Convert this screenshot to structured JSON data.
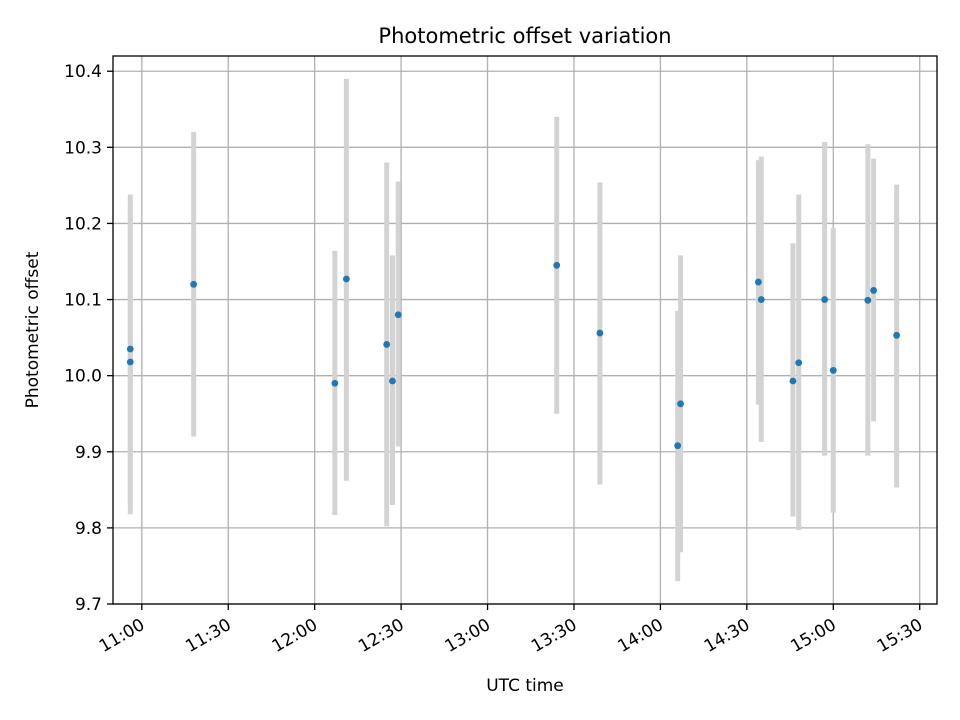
{
  "chart_data": {
    "type": "scatter",
    "title": "Photometric offset variation",
    "xlabel": "UTC time",
    "ylabel": "Photometric offset",
    "x_unit": "HH:MM UTC",
    "xlim": [
      "10:50",
      "15:36"
    ],
    "ylim": [
      9.7,
      10.42
    ],
    "x_ticks": [
      "11:00",
      "11:30",
      "12:00",
      "12:30",
      "13:00",
      "13:30",
      "14:00",
      "14:30",
      "15:00",
      "15:30"
    ],
    "y_ticks": [
      "9.7",
      "9.8",
      "9.9",
      "10.0",
      "10.1",
      "10.2",
      "10.3",
      "10.4"
    ],
    "grid": true,
    "x_tick_rotation": "30 degrees",
    "marker_color": "#1f77b4",
    "errorbar_color": "#d3d3d3",
    "points": [
      {
        "x": "10:56",
        "y": 10.018,
        "err_low": 9.818,
        "err_high": 10.222
      },
      {
        "x": "10:56",
        "y": 10.035,
        "err_low": 9.833,
        "err_high": 10.238
      },
      {
        "x": "11:18",
        "y": 10.12,
        "err_low": 9.92,
        "err_high": 10.32
      },
      {
        "x": "12:07",
        "y": 9.99,
        "err_low": 9.817,
        "err_high": 10.164
      },
      {
        "x": "12:11",
        "y": 10.127,
        "err_low": 9.862,
        "err_high": 10.39
      },
      {
        "x": "12:25",
        "y": 10.041,
        "err_low": 9.802,
        "err_high": 10.28
      },
      {
        "x": "12:27",
        "y": 9.993,
        "err_low": 9.83,
        "err_high": 10.158
      },
      {
        "x": "12:29",
        "y": 10.08,
        "err_low": 9.907,
        "err_high": 10.255
      },
      {
        "x": "13:24",
        "y": 10.145,
        "err_low": 9.95,
        "err_high": 10.34
      },
      {
        "x": "13:39",
        "y": 10.056,
        "err_low": 9.857,
        "err_high": 10.254
      },
      {
        "x": "14:06",
        "y": 9.908,
        "err_low": 9.73,
        "err_high": 10.085
      },
      {
        "x": "14:07",
        "y": 9.963,
        "err_low": 9.768,
        "err_high": 10.158
      },
      {
        "x": "14:34",
        "y": 10.123,
        "err_low": 9.962,
        "err_high": 10.283
      },
      {
        "x": "14:35",
        "y": 10.1,
        "err_low": 9.913,
        "err_high": 10.288
      },
      {
        "x": "14:46",
        "y": 9.993,
        "err_low": 9.815,
        "err_high": 10.174
      },
      {
        "x": "14:48",
        "y": 10.017,
        "err_low": 9.797,
        "err_high": 10.238
      },
      {
        "x": "14:57",
        "y": 10.1,
        "err_low": 9.895,
        "err_high": 10.307
      },
      {
        "x": "15:00",
        "y": 10.007,
        "err_low": 9.82,
        "err_high": 10.194
      },
      {
        "x": "15:12",
        "y": 10.099,
        "err_low": 9.895,
        "err_high": 10.304
      },
      {
        "x": "15:14",
        "y": 10.112,
        "err_low": 9.94,
        "err_high": 10.285
      },
      {
        "x": "15:22",
        "y": 10.053,
        "err_low": 9.853,
        "err_high": 10.251
      }
    ]
  }
}
